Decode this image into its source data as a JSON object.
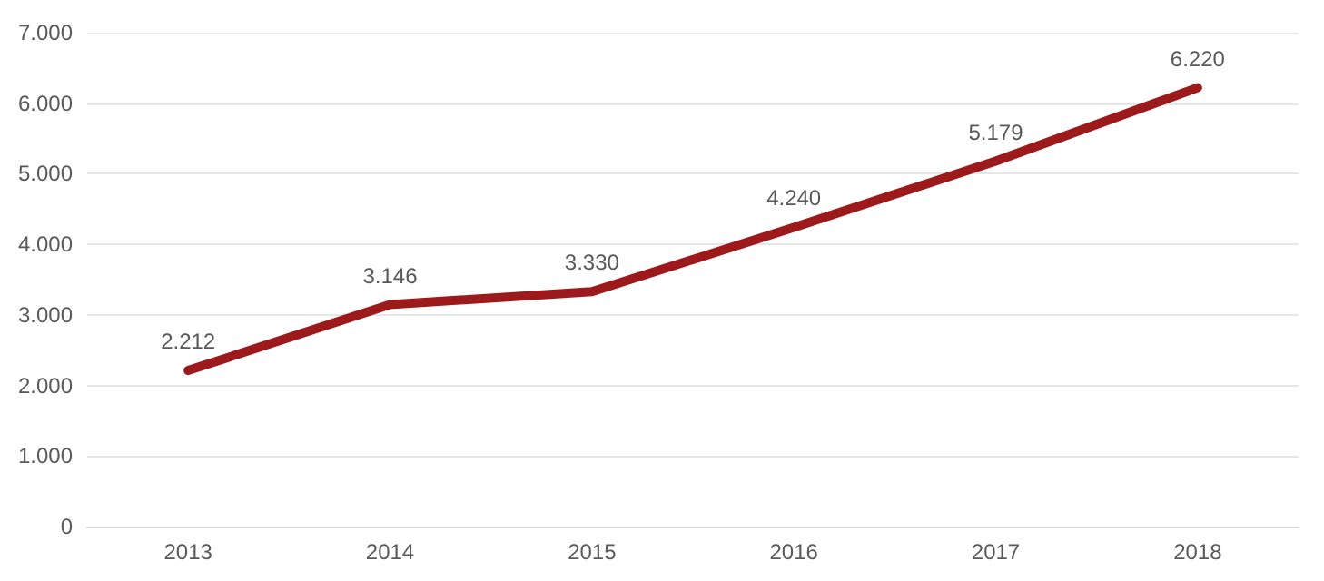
{
  "chart_data": {
    "type": "line",
    "categories": [
      "2013",
      "2014",
      "2015",
      "2016",
      "2017",
      "2018"
    ],
    "series": [
      {
        "color": "#9c1a1c",
        "values": [
          2212,
          3146,
          3330,
          4240,
          5179,
          6220
        ],
        "value_labels": [
          "2.212",
          "3.146",
          "3.330",
          "4.240",
          "5.179",
          "6.220"
        ]
      }
    ],
    "ylim": [
      0,
      7000
    ],
    "yticks": [
      {
        "value": 0,
        "label": "0"
      },
      {
        "value": 1000,
        "label": "1.000"
      },
      {
        "value": 2000,
        "label": "2.000"
      },
      {
        "value": 3000,
        "label": "3.000"
      },
      {
        "value": 4000,
        "label": "4.000"
      },
      {
        "value": 5000,
        "label": "5.000"
      },
      {
        "value": 6000,
        "label": "6.000"
      },
      {
        "value": 7000,
        "label": "7.000"
      }
    ],
    "grid": "y",
    "marker": "none",
    "line_style": "solid"
  }
}
